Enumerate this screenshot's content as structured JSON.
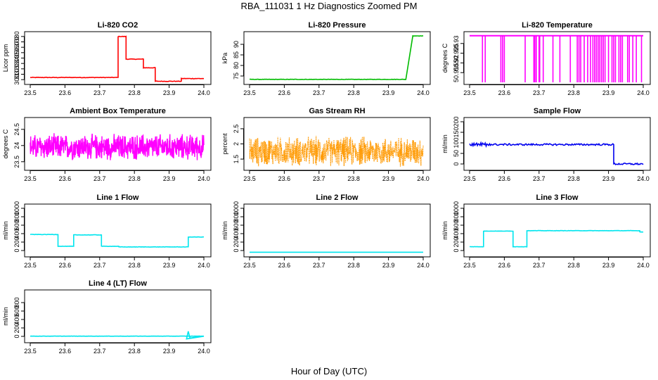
{
  "figure": {
    "title": "RBA_111031  1 Hz Diagnostics Zoomed PM",
    "xlabel": "Hour of Day (UTC)"
  },
  "chart_data": [
    {
      "type": "line",
      "title": "Li-820 CO2",
      "ylabel": "Licor ppm",
      "xlim": [
        23.5,
        24.0
      ],
      "xticks": [
        "23.5",
        "23.6",
        "23.7",
        "23.8",
        "23.9",
        "24.0"
      ],
      "ylim": [
        295,
        385
      ],
      "yticks": [
        300,
        310,
        320,
        330,
        340,
        350,
        360,
        370,
        380
      ],
      "color": "#ff0000",
      "noise": 0.5,
      "segments": [
        [
          23.5,
          23.753,
          304
        ],
        [
          23.753,
          23.776,
          380
        ],
        [
          23.776,
          23.826,
          338
        ],
        [
          23.826,
          23.86,
          322
        ],
        [
          23.86,
          23.935,
          297
        ],
        [
          23.935,
          24.0,
          302
        ]
      ]
    },
    {
      "type": "line",
      "title": "Li-820 Pressure",
      "ylabel": "kPa",
      "xlim": [
        23.5,
        24.0
      ],
      "xticks": [
        "23.5",
        "23.6",
        "23.7",
        "23.8",
        "23.9",
        "24.0"
      ],
      "ylim": [
        72,
        95
      ],
      "yticks": [
        75,
        80,
        85,
        90
      ],
      "color": "#00bb00",
      "noise": 0.08,
      "segments": [
        [
          23.5,
          23.95,
          73.4
        ],
        [
          23.97,
          24.0,
          94
        ]
      ],
      "ramp": [
        23.95,
        23.97
      ]
    },
    {
      "type": "spikes",
      "title": "Li-820 Temperature",
      "ylabel": "degrees C",
      "xlim": [
        23.5,
        24.0
      ],
      "xticks": [
        "23.5",
        "23.6",
        "23.7",
        "23.8",
        "23.9",
        "24.0"
      ],
      "ylim": [
        50.91,
        50.935
      ],
      "yticks": [
        50.915,
        50.92,
        50.925,
        50.93
      ],
      "color": "#ff00ff",
      "base": 50.934,
      "low": 50.91
    },
    {
      "type": "noise",
      "title": "Ambient Box Temperature",
      "ylabel": "degrees C",
      "xlim": [
        23.5,
        24.0
      ],
      "xticks": [
        "23.5",
        "23.6",
        "23.7",
        "23.8",
        "23.9",
        "24.0"
      ],
      "ylim": [
        23.3,
        24.8
      ],
      "yticks": [
        23.5,
        24.0,
        24.5
      ],
      "color": "#ff00ff",
      "mean": 23.95,
      "spread": 0.45
    },
    {
      "type": "noise",
      "title": "Gas Stream RH",
      "ylabel": "percent",
      "xlim": [
        23.5,
        24.0
      ],
      "xticks": [
        "23.5",
        "23.6",
        "23.7",
        "23.8",
        "23.9",
        "24.0"
      ],
      "ylim": [
        1.2,
        2.8
      ],
      "yticks": [
        1.5,
        2.0,
        2.5
      ],
      "color": "#ff9900",
      "mean": 1.75,
      "spread": 0.55,
      "dots": true
    },
    {
      "type": "line",
      "title": "Sample Flow",
      "ylabel": "ml/min",
      "xlim": [
        23.5,
        24.0
      ],
      "xticks": [
        "23.5",
        "23.6",
        "23.7",
        "23.8",
        "23.9",
        "24.0"
      ],
      "ylim": [
        -20,
        210
      ],
      "yticks": [
        0,
        50,
        100,
        150,
        200
      ],
      "color": "#0000ee",
      "noise": 4,
      "segments": [
        [
          23.5,
          23.915,
          92
        ],
        [
          23.915,
          24.0,
          0
        ]
      ]
    },
    {
      "type": "line",
      "title": "Line 1 Flow",
      "ylabel": "ml/min",
      "xlim": [
        23.5,
        24.0
      ],
      "xticks": [
        "23.5",
        "23.6",
        "23.7",
        "23.8",
        "23.9",
        "24.0"
      ],
      "ylim": [
        -100,
        1050
      ],
      "yticks": [
        0,
        200,
        400,
        600,
        800,
        1000
      ],
      "color": "#00e5ee",
      "noise": 4,
      "segments": [
        [
          23.5,
          23.58,
          380
        ],
        [
          23.58,
          23.625,
          100
        ],
        [
          23.625,
          23.705,
          370
        ],
        [
          23.705,
          23.755,
          100
        ],
        [
          23.755,
          23.955,
          85
        ],
        [
          23.955,
          24.0,
          320
        ]
      ]
    },
    {
      "type": "line",
      "title": "Line 2 Flow",
      "ylabel": "ml/min",
      "xlim": [
        23.5,
        24.0
      ],
      "xticks": [
        "23.5",
        "23.6",
        "23.7",
        "23.8",
        "23.9",
        "24.0"
      ],
      "ylim": [
        -100,
        1050
      ],
      "yticks": [
        0,
        200,
        400,
        600,
        800,
        1000
      ],
      "color": "#00e5ee",
      "noise": 0,
      "segments": [
        [
          23.5,
          24.0,
          -40
        ]
      ]
    },
    {
      "type": "line",
      "title": "Line 3 Flow",
      "ylabel": "ml/min",
      "xlim": [
        23.5,
        24.0
      ],
      "xticks": [
        "23.5",
        "23.6",
        "23.7",
        "23.8",
        "23.9",
        "24.0"
      ],
      "ylim": [
        -100,
        1050
      ],
      "yticks": [
        0,
        200,
        400,
        600,
        800,
        1000
      ],
      "color": "#00e5ee",
      "noise": 3,
      "segments": [
        [
          23.5,
          23.54,
          90
        ],
        [
          23.54,
          23.625,
          460
        ],
        [
          23.625,
          23.665,
          90
        ],
        [
          23.665,
          23.99,
          470
        ],
        [
          23.99,
          24.0,
          440
        ]
      ]
    },
    {
      "type": "line",
      "title": "Line 4 (LT) Flow",
      "ylabel": "ml/min",
      "xlim": [
        23.5,
        24.0
      ],
      "xticks": [
        "23.5",
        "23.6",
        "23.7",
        "23.8",
        "23.9",
        "24.0"
      ],
      "ylim": [
        -100,
        1050
      ],
      "yticks": [
        0,
        200,
        400,
        600,
        800
      ],
      "color": "#00e5ee",
      "noise": 2,
      "segments": [
        [
          23.5,
          24.0,
          5
        ]
      ]
    }
  ]
}
